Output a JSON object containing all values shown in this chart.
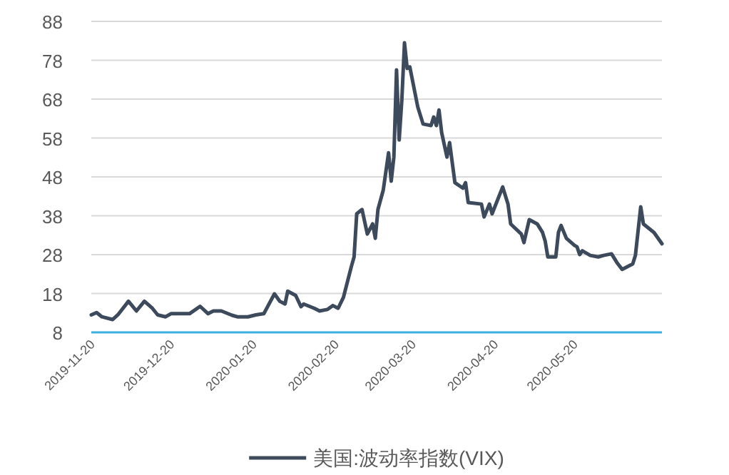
{
  "chart_data": {
    "type": "line",
    "x": [
      "2019-11-20",
      "2019-11-22",
      "2019-11-24",
      "2019-11-28",
      "2019-11-30",
      "2019-12-04",
      "2019-12-07",
      "2019-12-10",
      "2019-12-13",
      "2019-12-15",
      "2019-12-18",
      "2019-12-20",
      "2019-12-27",
      "2019-12-31",
      "2020-01-03",
      "2020-01-05",
      "2020-01-08",
      "2020-01-12",
      "2020-01-14",
      "2020-01-18",
      "2020-01-21",
      "2020-01-24",
      "2020-01-28",
      "2020-01-30",
      "2020-02-01",
      "2020-02-02",
      "2020-02-05",
      "2020-02-07",
      "2020-02-08",
      "2020-02-12",
      "2020-02-14",
      "2020-02-17",
      "2020-02-19",
      "2020-02-21",
      "2020-02-23",
      "2020-02-26",
      "2020-02-27",
      "2020-02-28",
      "2020-03-01",
      "2020-03-03",
      "2020-03-05",
      "2020-03-06",
      "2020-03-07",
      "2020-03-09",
      "2020-03-11",
      "2020-03-12",
      "2020-03-13",
      "2020-03-14",
      "2020-03-15",
      "2020-03-16",
      "2020-03-17",
      "2020-03-18",
      "2020-03-19",
      "2020-03-22",
      "2020-03-24",
      "2020-03-27",
      "2020-03-28",
      "2020-03-29",
      "2020-03-30",
      "2020-03-31",
      "2020-04-02",
      "2020-04-03",
      "2020-04-05",
      "2020-04-08",
      "2020-04-09",
      "2020-04-10",
      "2020-04-15",
      "2020-04-16",
      "2020-04-18",
      "2020-04-19",
      "2020-04-23",
      "2020-04-25",
      "2020-04-26",
      "2020-04-30",
      "2020-05-01",
      "2020-05-03",
      "2020-05-06",
      "2020-05-08",
      "2020-05-09",
      "2020-05-10",
      "2020-05-13",
      "2020-05-14",
      "2020-05-15",
      "2020-05-17",
      "2020-05-20",
      "2020-05-21",
      "2020-05-22",
      "2020-05-23",
      "2020-05-26",
      "2020-05-29",
      "2020-05-31",
      "2020-06-03",
      "2020-06-05",
      "2020-06-07",
      "2020-06-11",
      "2020-06-12",
      "2020-06-14",
      "2020-06-15",
      "2020-06-19",
      "2020-06-22"
    ],
    "series": [
      {
        "name": "美国:波动率指数(VIX)",
        "color": "#3d4a5c",
        "values": [
          12.5,
          13.1,
          12,
          11.3,
          12.5,
          16,
          13.5,
          16,
          14.2,
          12.5,
          12,
          12.8,
          12.8,
          14.7,
          12.8,
          13.5,
          13.5,
          12.4,
          12,
          12,
          12.5,
          12.8,
          17.9,
          16,
          15.3,
          18.6,
          17.5,
          14.6,
          15.3,
          14.2,
          13.5,
          13.9,
          14.9,
          14.2,
          17,
          25,
          27.4,
          38.5,
          39.6,
          33.3,
          35.9,
          32.2,
          39.6,
          44.6,
          54.2,
          46.9,
          53.1,
          75.5,
          57.5,
          67.8,
          82.5,
          75.9,
          76.3,
          66,
          61.6,
          61.2,
          63.4,
          61.2,
          65.2,
          59.4,
          53.1,
          56.8,
          46.5,
          45.1,
          46.5,
          41.4,
          41,
          37.7,
          41,
          38.5,
          45.4,
          41,
          35.9,
          33.3,
          31.1,
          37,
          35.9,
          33.7,
          31.5,
          27.4,
          27.4,
          33.7,
          35.5,
          32.2,
          30.4,
          30,
          28,
          29,
          27.8,
          27.4,
          27.8,
          28.2,
          26,
          24.2,
          25.6,
          27.8,
          40.3,
          35.9,
          33.7,
          30.8
        ]
      }
    ],
    "xlim": [
      "2019-11-20",
      "2020-06-22"
    ],
    "xticks": [
      "2019-11-20",
      "2019-12-20",
      "2020-01-20",
      "2020-02-20",
      "2020-03-20",
      "2020-04-20",
      "2020-05-20"
    ],
    "ylim": [
      8,
      88
    ],
    "yticks": [
      8,
      18,
      28,
      38,
      48,
      58,
      68,
      78,
      88
    ],
    "grid": "y",
    "legend": "bottom"
  }
}
